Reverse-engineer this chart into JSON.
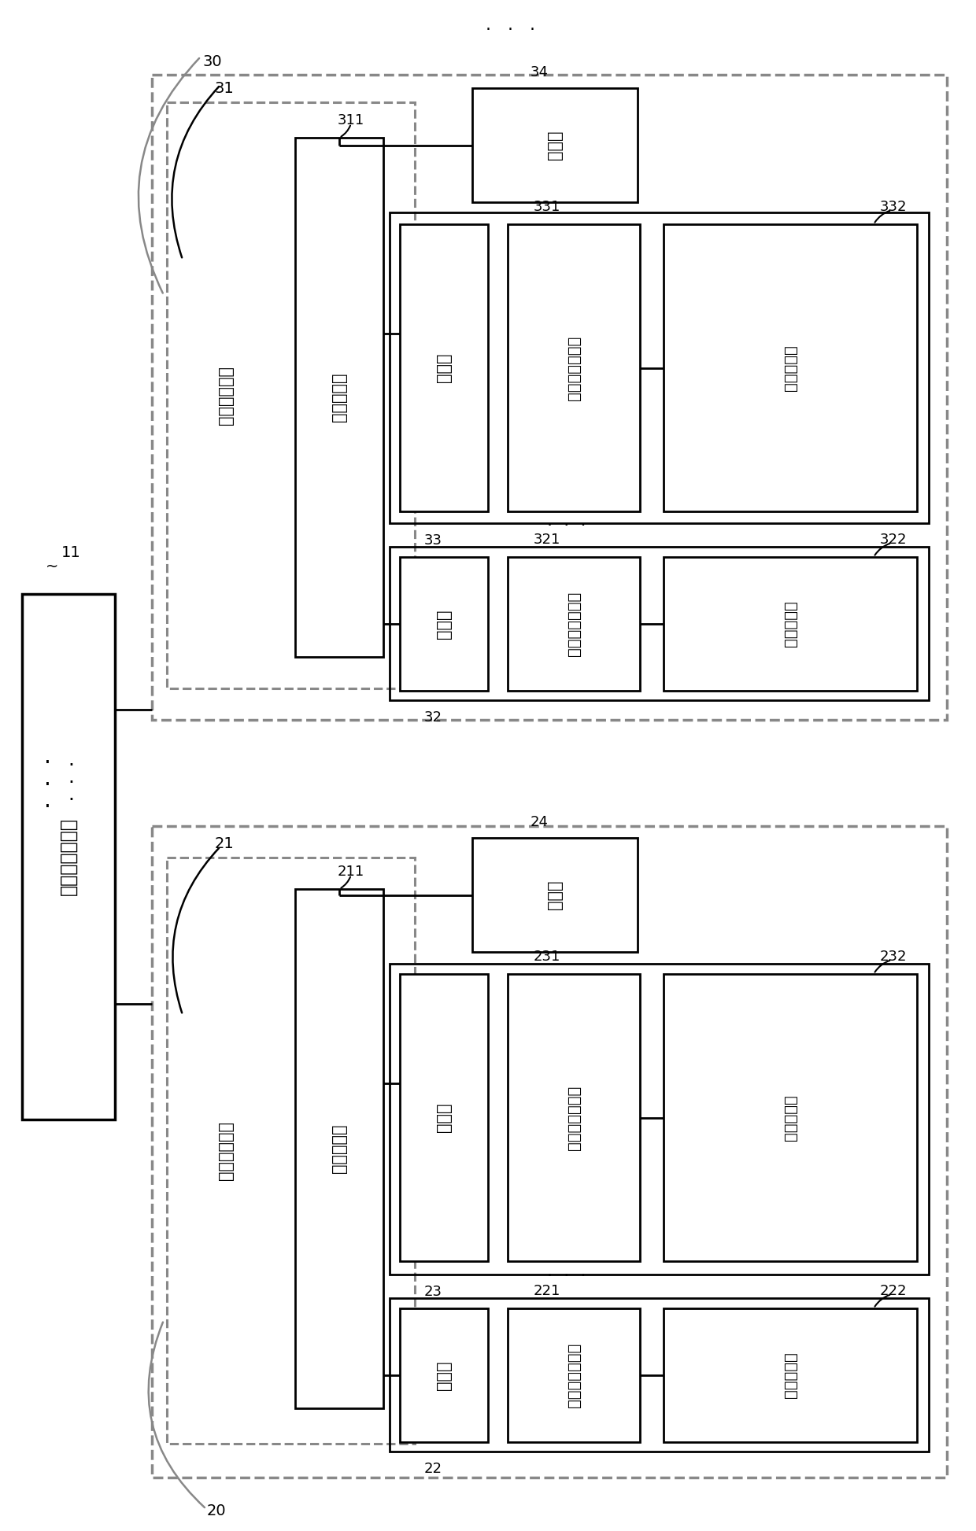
{
  "bg_color": "#ffffff",
  "lc": "#000000",
  "dc": "#888888",
  "fig_w": 12.4,
  "fig_h": 19.46,
  "cabinet_mgr_label": "机柜管理控制器",
  "id_11": "11",
  "zone30_id": "30",
  "zone31_id": "31",
  "zone31_label": "区域控制单元",
  "bp311_id": "311",
  "bp311_label": "背板处理器",
  "fan34_id": "34",
  "fan34_label": "风扇组",
  "srv33_id": "33",
  "srv33_label": "服务器",
  "bmc331_id": "331",
  "bmc331_label": "基板管理控制器",
  "tmp332_id": "332",
  "tmp332_label": "温度侦测器",
  "srv32_id": "32",
  "srv32_label": "服务器",
  "bmc321_id": "321",
  "bmc321_label": "基板管理控制器",
  "tmp322_id": "322",
  "tmp322_label": "温度侦测器",
  "zone20_id": "20",
  "zone21_id": "21",
  "zone21_label": "区域控制单元",
  "bp211_id": "211",
  "bp211_label": "背板处理器",
  "fan24_id": "24",
  "fan24_label": "风扇组",
  "srv23_id": "23",
  "srv23_label": "服务器",
  "bmc231_id": "231",
  "bmc231_label": "基板管理控制器",
  "tmp232_id": "232",
  "tmp232_label": "温度侦测器",
  "srv22_id": "22",
  "srv22_label": "服务器",
  "bmc221_id": "221",
  "bmc221_label": "基板管理控制器",
  "tmp222_id": "222",
  "tmp222_label": "温度侦测器"
}
